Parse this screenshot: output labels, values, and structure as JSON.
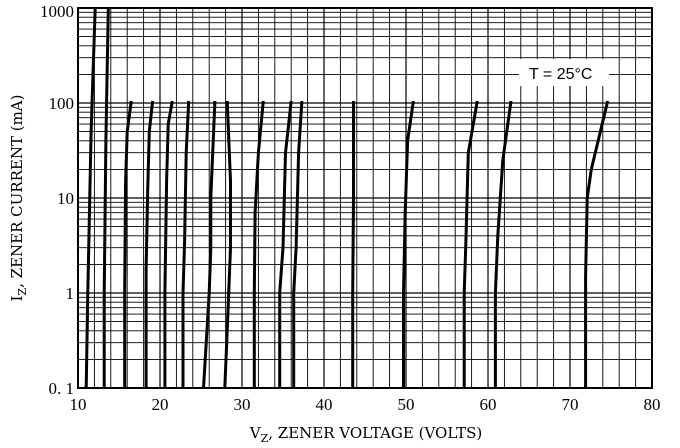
{
  "chart_data": {
    "type": "line",
    "title": "",
    "xlabel": {
      "symbol": "V",
      "subscript": "Z",
      "rest": ",  ZENER VOLTAGE (VOLTS)"
    },
    "ylabel": {
      "symbol": "I",
      "subscript": "Z",
      "rest": ",  ZENER CURRENT (mA)"
    },
    "xlim": [
      10,
      80
    ],
    "ylim": [
      0.1,
      1000
    ],
    "y_scale": "log",
    "grid": true,
    "x_ticks": [
      {
        "value": 10,
        "label": "10"
      },
      {
        "value": 20,
        "label": "20"
      },
      {
        "value": 30,
        "label": "30"
      },
      {
        "value": 40,
        "label": "40"
      },
      {
        "value": 50,
        "label": "50"
      },
      {
        "value": 60,
        "label": "60"
      },
      {
        "value": 70,
        "label": "70"
      },
      {
        "value": 80,
        "label": "80"
      }
    ],
    "y_ticks": [
      {
        "value": 0.1,
        "label": "0. 1"
      },
      {
        "value": 1,
        "label": "1"
      },
      {
        "value": 10,
        "label": "10"
      },
      {
        "value": 100,
        "label": "100"
      },
      {
        "value": 1000,
        "label": "1000"
      }
    ],
    "annotation": "T = 25°C",
    "annotation_position": "top-right",
    "series": [
      {
        "x": [
          11.0,
          11.2,
          11.6,
          12.1
        ],
        "y": [
          0.1,
          1,
          50,
          1000
        ]
      },
      {
        "x": [
          13.2,
          13.2,
          13.4,
          13.7
        ],
        "y": [
          0.1,
          1,
          40,
          1000
        ]
      },
      {
        "x": [
          15.7,
          15.7,
          15.8,
          16.0,
          16.5
        ],
        "y": [
          0.1,
          1,
          15,
          50,
          105
        ]
      },
      {
        "x": [
          18.3,
          18.3,
          18.5,
          18.7,
          19.1
        ],
        "y": [
          0.1,
          1.8,
          12,
          50,
          105
        ]
      },
      {
        "x": [
          20.6,
          20.6,
          20.8,
          21.0,
          21.5
        ],
        "y": [
          0.1,
          1,
          15,
          60,
          105
        ]
      },
      {
        "x": [
          22.8,
          22.8,
          23.0,
          23.2,
          23.5
        ],
        "y": [
          0.1,
          1,
          3.5,
          30,
          105
        ]
      },
      {
        "x": [
          25.3,
          26.0,
          26.2,
          26.2,
          26.7
        ],
        "y": [
          0.1,
          1,
          3,
          10,
          105
        ]
      },
      {
        "x": [
          27.9,
          28.2,
          28.6,
          28.6,
          28.2
        ],
        "y": [
          0.1,
          0.4,
          3,
          15,
          105
        ]
      },
      {
        "x": [
          31.5,
          31.5,
          31.6,
          32.0,
          32.6
        ],
        "y": [
          0.1,
          1,
          7,
          30,
          105
        ]
      },
      {
        "x": [
          34.6,
          34.6,
          35.0,
          35.3,
          36.0
        ],
        "y": [
          0.1,
          1,
          3,
          30,
          105
        ]
      },
      {
        "x": [
          36.3,
          36.3,
          36.6,
          36.9,
          37.3
        ],
        "y": [
          0.1,
          1,
          3,
          30,
          105
        ]
      },
      {
        "x": [
          43.5,
          43.5,
          43.6,
          43.6
        ],
        "y": [
          0.1,
          1,
          10,
          105
        ]
      },
      {
        "x": [
          49.7,
          49.7,
          49.9,
          50.2,
          50.9
        ],
        "y": [
          0.1,
          1,
          7,
          40,
          105
        ]
      },
      {
        "x": [
          57.1,
          57.1,
          57.3,
          57.6,
          58.7
        ],
        "y": [
          0.1,
          1,
          3.5,
          30,
          105
        ]
      },
      {
        "x": [
          60.9,
          60.9,
          61.2,
          61.8,
          62.8
        ],
        "y": [
          0.1,
          1,
          4,
          25,
          105
        ]
      },
      {
        "x": [
          71.9,
          71.9,
          72.1,
          72.6,
          74.6
        ],
        "y": [
          0.1,
          1.5,
          10,
          20,
          105
        ]
      }
    ]
  }
}
